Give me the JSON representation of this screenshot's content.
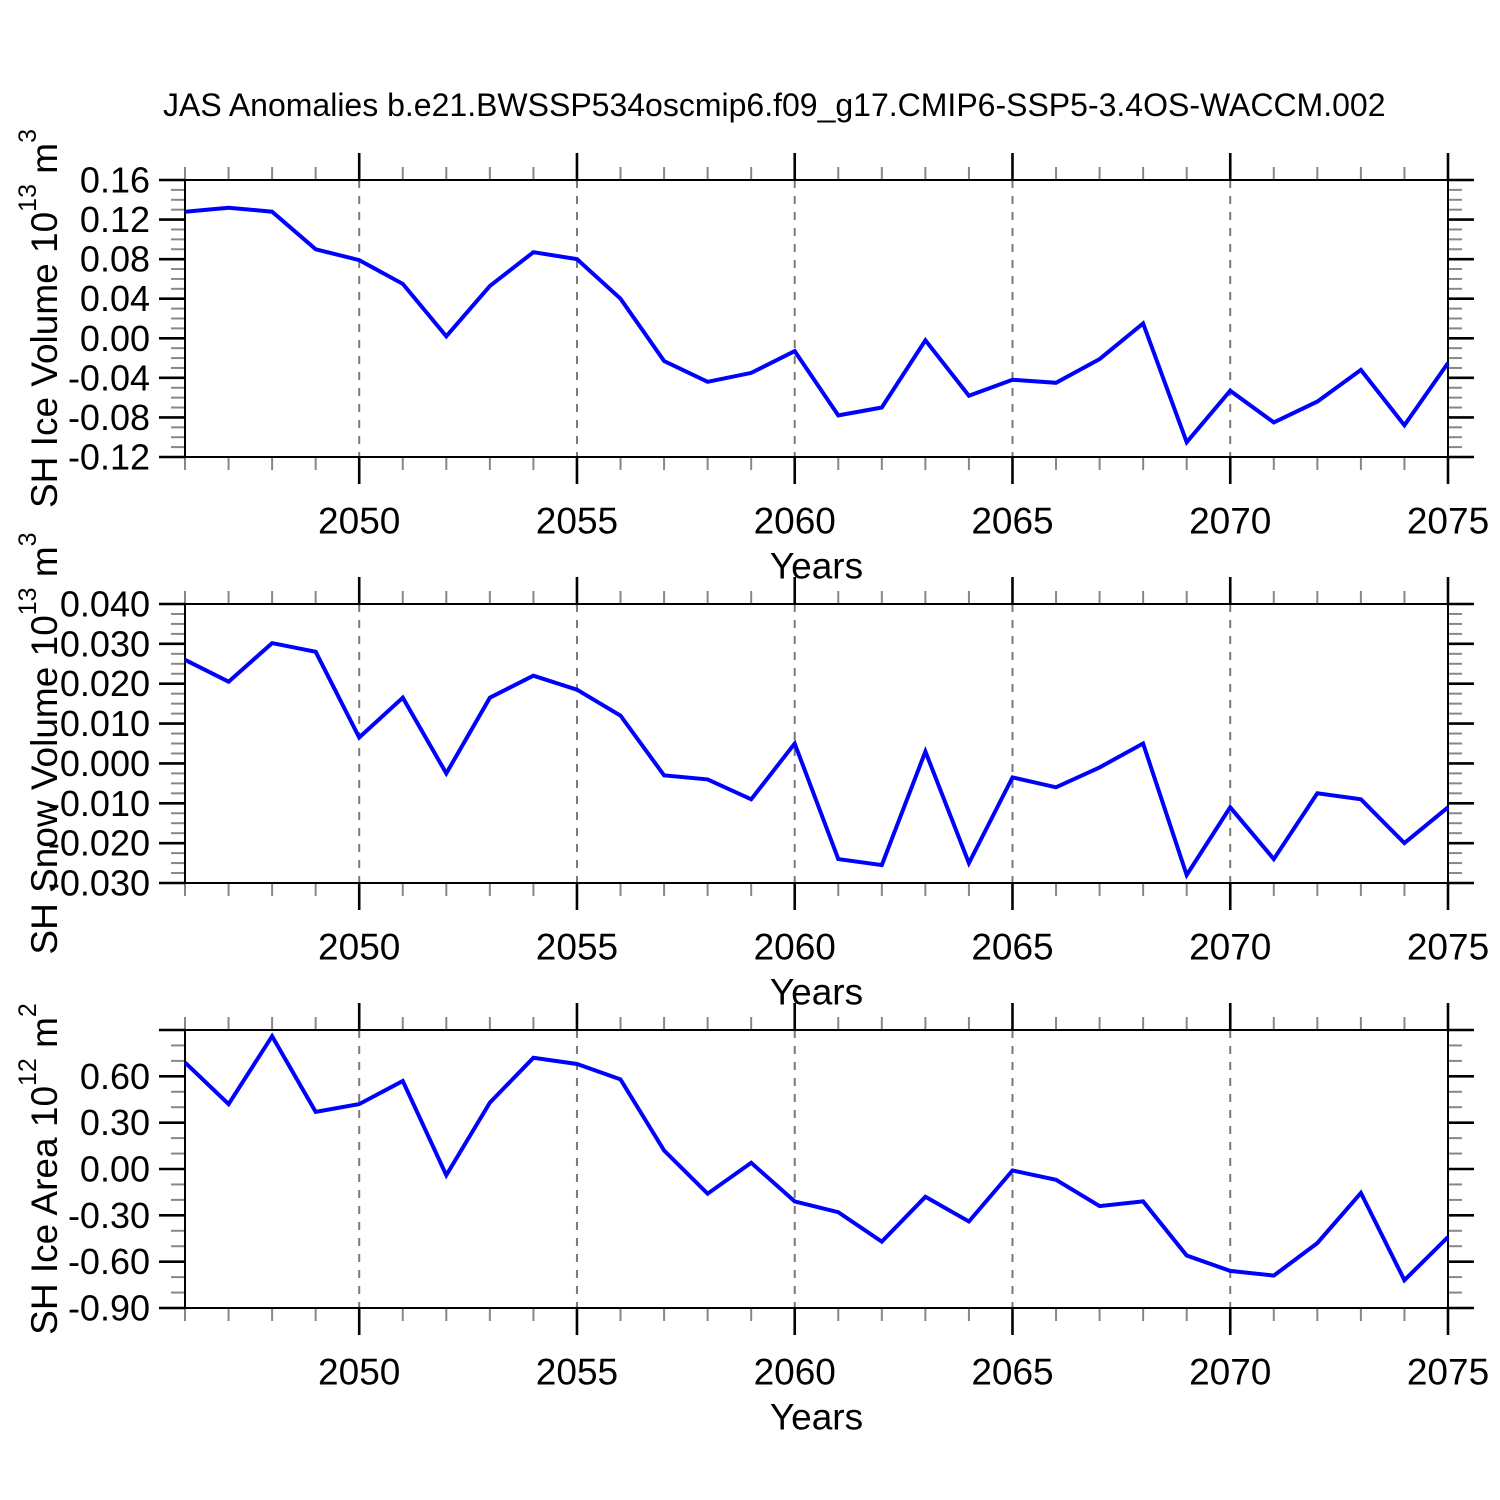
{
  "title": "JAS Anomalies b.e21.BWSSP534oscmip6.f09_g17.CMIP6-SSP5-3.4OS-WACCM.002",
  "colors": {
    "series_line": "#0000ff",
    "axis": "#000000",
    "major_tick": "#000000",
    "minor_tick": "#878787",
    "gridline": "#7a7a7a",
    "background": "#ffffff"
  },
  "xlabel": "Years",
  "chart_data": [
    {
      "type": "line",
      "panel": "sh-ice-volume",
      "ylabel_plain": "SH Ice Volume 10^13 m^3",
      "ylabel_parts": [
        {
          "t": "SH Ice Volume 10"
        },
        {
          "t": "13",
          "sup": true
        },
        {
          "t": " m"
        },
        {
          "t": "3",
          "sup": true
        }
      ],
      "xlabel": "Years",
      "xlim": [
        2046,
        2075
      ],
      "ylim": [
        -0.12,
        0.16
      ],
      "x": [
        2046,
        2047,
        2048,
        2049,
        2050,
        2051,
        2052,
        2053,
        2054,
        2055,
        2056,
        2057,
        2058,
        2059,
        2060,
        2061,
        2062,
        2063,
        2064,
        2065,
        2066,
        2067,
        2068,
        2069,
        2070,
        2071,
        2072,
        2073,
        2074,
        2075
      ],
      "values": [
        0.128,
        0.132,
        0.128,
        0.09,
        0.079,
        0.055,
        0.002,
        0.053,
        0.087,
        0.08,
        0.04,
        -0.023,
        -0.044,
        -0.035,
        -0.013,
        -0.078,
        -0.07,
        -0.002,
        -0.058,
        -0.042,
        -0.045,
        -0.021,
        0.015,
        -0.105,
        -0.053,
        -0.085,
        -0.064,
        -0.032,
        -0.088,
        -0.025
      ],
      "ytick_values": [
        0.16,
        0.12,
        0.08,
        0.04,
        0.0,
        -0.04,
        -0.08,
        -0.12
      ],
      "ytick_labels": [
        "0.16",
        "0.12",
        "0.08",
        "0.04",
        "0.00",
        "-0.04",
        "-0.08",
        "-0.12"
      ],
      "y_minor_per_major": 3,
      "xtick_values": [
        2050,
        2055,
        2060,
        2065,
        2070,
        2075
      ],
      "xtick_labels": [
        "2050",
        "2055",
        "2060",
        "2065",
        "2070",
        "2075"
      ],
      "x_minor_step": 1,
      "grid_x": [
        2050,
        2055,
        2060,
        2065,
        2070
      ],
      "grid": "vertical-dashed",
      "legend": null
    },
    {
      "type": "line",
      "panel": "sh-snow-volume",
      "ylabel_plain": "SH Snow Volume 10^13 m^3",
      "ylabel_parts": [
        {
          "t": "SH Snow Volume 10"
        },
        {
          "t": "13",
          "sup": true
        },
        {
          "t": " m"
        },
        {
          "t": "3",
          "sup": true
        }
      ],
      "xlabel": "Years",
      "xlim": [
        2046,
        2075
      ],
      "ylim": [
        -0.03,
        0.04
      ],
      "x": [
        2046,
        2047,
        2048,
        2049,
        2050,
        2051,
        2052,
        2053,
        2054,
        2055,
        2056,
        2057,
        2058,
        2059,
        2060,
        2061,
        2062,
        2063,
        2064,
        2065,
        2066,
        2067,
        2068,
        2069,
        2070,
        2071,
        2072,
        2073,
        2074,
        2075
      ],
      "values": [
        0.026,
        0.0205,
        0.0302,
        0.028,
        0.0065,
        0.0165,
        -0.0025,
        0.0165,
        0.022,
        0.0185,
        0.012,
        -0.003,
        -0.004,
        -0.009,
        0.005,
        -0.024,
        -0.0255,
        0.003,
        -0.025,
        -0.0035,
        -0.006,
        -0.001,
        0.005,
        -0.028,
        -0.011,
        -0.024,
        -0.0075,
        -0.009,
        -0.02,
        -0.011
      ],
      "ytick_values": [
        0.04,
        0.03,
        0.02,
        0.01,
        0.0,
        -0.01,
        -0.02,
        -0.03
      ],
      "ytick_labels": [
        "0.040",
        "0.030",
        "0.020",
        "0.010",
        "0.000",
        "-0.010",
        "-0.020",
        "-0.030"
      ],
      "y_minor_per_major": 3,
      "xtick_values": [
        2050,
        2055,
        2060,
        2065,
        2070,
        2075
      ],
      "xtick_labels": [
        "2050",
        "2055",
        "2060",
        "2065",
        "2070",
        "2075"
      ],
      "x_minor_step": 1,
      "grid_x": [
        2050,
        2055,
        2060,
        2065,
        2070
      ],
      "grid": "vertical-dashed",
      "legend": null
    },
    {
      "type": "line",
      "panel": "sh-ice-area",
      "ylabel_plain": "SH Ice Area 10^12 m^2",
      "ylabel_parts": [
        {
          "t": "SH Ice Area 10"
        },
        {
          "t": "12",
          "sup": true
        },
        {
          "t": " m"
        },
        {
          "t": "2",
          "sup": true
        }
      ],
      "xlabel": "Years",
      "xlim": [
        2046,
        2075
      ],
      "ylim": [
        -0.9,
        0.9
      ],
      "x": [
        2046,
        2047,
        2048,
        2049,
        2050,
        2051,
        2052,
        2053,
        2054,
        2055,
        2056,
        2057,
        2058,
        2059,
        2060,
        2061,
        2062,
        2063,
        2064,
        2065,
        2066,
        2067,
        2068,
        2069,
        2070,
        2071,
        2072,
        2073,
        2074,
        2075
      ],
      "values": [
        0.69,
        0.42,
        0.86,
        0.37,
        0.42,
        0.57,
        -0.04,
        0.43,
        0.72,
        0.68,
        0.58,
        0.12,
        -0.16,
        0.04,
        -0.21,
        -0.28,
        -0.47,
        -0.18,
        -0.34,
        -0.01,
        -0.07,
        -0.24,
        -0.21,
        -0.56,
        -0.66,
        -0.69,
        -0.48,
        -0.155,
        -0.72,
        -0.44
      ],
      "ytick_values": [
        0.9,
        0.6,
        0.3,
        0.0,
        -0.3,
        -0.6,
        -0.9
      ],
      "ytick_labels": [
        "",
        "0.60",
        "0.30",
        "0.00",
        "-0.30",
        "-0.60",
        "-0.90"
      ],
      "y_minor_per_major": 2,
      "xtick_values": [
        2050,
        2055,
        2060,
        2065,
        2070,
        2075
      ],
      "xtick_labels": [
        "2050",
        "2055",
        "2060",
        "2065",
        "2070",
        "2075"
      ],
      "x_minor_step": 1,
      "grid_x": [
        2050,
        2055,
        2060,
        2065,
        2070
      ],
      "grid": "vertical-dashed",
      "legend": null
    }
  ]
}
